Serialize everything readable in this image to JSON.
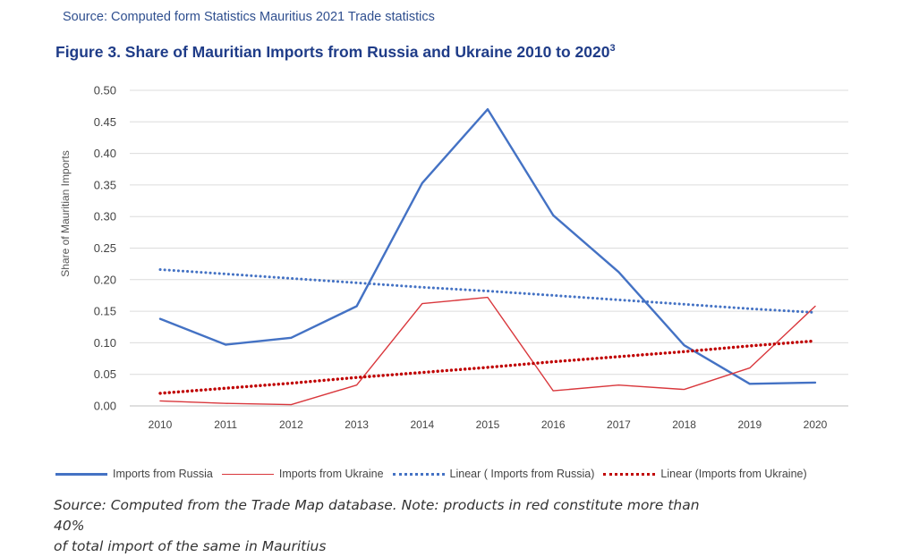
{
  "header": {
    "source_line": "Source: Computed form Statistics Mauritius 2021 Trade statistics",
    "figure_title": "Figure 3.  Share of Mauritian Imports from Russia and Ukraine 2010 to 2020",
    "figure_title_footnote": "3"
  },
  "chart_data": {
    "type": "line",
    "title": "Share of Mauritian Imports from Russia and Ukraine 2010 to 2020",
    "xlabel": "",
    "ylabel": "Share of Mauritian Imports",
    "ylim": [
      0,
      0.5
    ],
    "yticks": [
      "0.00",
      "0.05",
      "0.10",
      "0.15",
      "0.20",
      "0.25",
      "0.30",
      "0.35",
      "0.40",
      "0.45",
      "0.50"
    ],
    "categories": [
      "2010",
      "2011",
      "2012",
      "2013",
      "2014",
      "2015",
      "2016",
      "2017",
      "2018",
      "2019",
      "2020"
    ],
    "grid": true,
    "legend_position": "bottom",
    "series": [
      {
        "name": "Imports from Russia",
        "style": "solid-thick",
        "color": "#4472c4",
        "values": [
          0.138,
          0.097,
          0.108,
          0.158,
          0.353,
          0.47,
          0.302,
          0.212,
          0.096,
          0.035,
          0.037
        ]
      },
      {
        "name": "Imports from Ukraine",
        "style": "solid-thin",
        "color": "#d9373c",
        "values": [
          0.008,
          0.004,
          0.002,
          0.033,
          0.162,
          0.172,
          0.024,
          0.033,
          0.026,
          0.06,
          0.158
        ]
      },
      {
        "name": "Linear ( Imports from Russia)",
        "style": "dotted",
        "color": "#4472c4",
        "values": [
          0.216,
          0.209,
          0.202,
          0.195,
          0.188,
          0.182,
          0.175,
          0.168,
          0.161,
          0.154,
          0.148
        ]
      },
      {
        "name": "Linear (Imports from Ukraine)",
        "style": "dotted-thick",
        "color": "#c00000",
        "values": [
          0.02,
          0.028,
          0.036,
          0.045,
          0.053,
          0.061,
          0.07,
          0.078,
          0.086,
          0.095,
          0.103
        ]
      }
    ]
  },
  "footer": {
    "note_line1": "Source: Computed from the Trade Map database. Note: products in red constitute more than 40%",
    "note_line2": "of total import of the same in Mauritius"
  }
}
